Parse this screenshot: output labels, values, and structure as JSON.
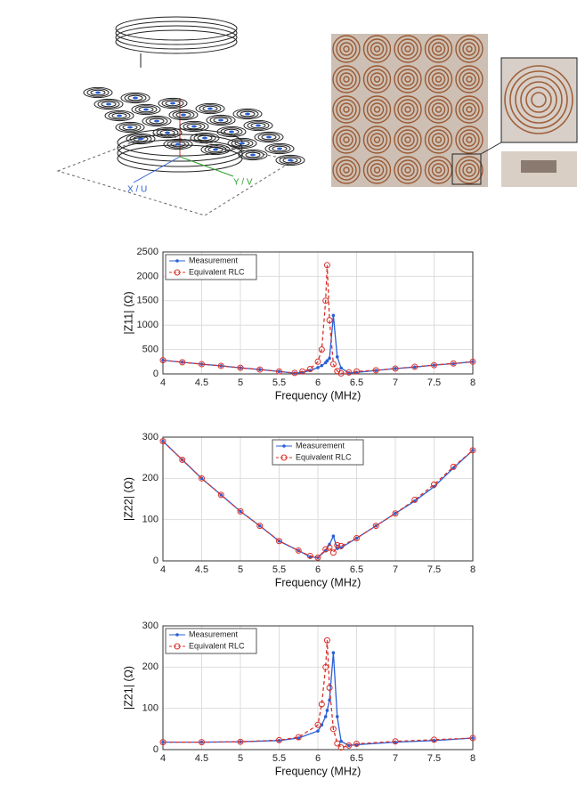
{
  "figure": {
    "diagram_labels": [
      "X / U",
      "Y / V"
    ]
  },
  "chart_data": [
    {
      "type": "line",
      "xlabel": "Frequency (MHz)",
      "ylabel": "|Z11| (Ω)",
      "xlim": [
        4,
        8
      ],
      "xticks": [
        4,
        4.5,
        5,
        5.5,
        6,
        6.5,
        7,
        7.5,
        8
      ],
      "ylim": [
        0,
        2500
      ],
      "yticks": [
        0,
        500,
        1000,
        1500,
        2000,
        2500
      ],
      "grid": true,
      "legend": "upper left",
      "x": [
        4,
        4.25,
        4.5,
        4.75,
        5,
        5.25,
        5.5,
        5.7,
        5.8,
        5.9,
        6,
        6.05,
        6.1,
        6.12,
        6.15,
        6.2,
        6.25,
        6.3,
        6.4,
        6.5,
        6.75,
        7,
        7.25,
        7.5,
        7.75,
        8
      ],
      "series": [
        {
          "name": "Measurement",
          "color": "#2a5fd6",
          "dash": false,
          "marker": "dot",
          "values": [
            280,
            240,
            200,
            165,
            125,
            90,
            50,
            15,
            30,
            70,
            130,
            170,
            230,
            270,
            320,
            1200,
            350,
            120,
            20,
            30,
            70,
            110,
            140,
            180,
            210,
            250
          ]
        },
        {
          "name": "Equivalent RLC",
          "color": "#d9312b",
          "dash": true,
          "marker": "circle",
          "values": [
            280,
            240,
            200,
            165,
            125,
            90,
            50,
            20,
            50,
            100,
            250,
            500,
            1500,
            2230,
            1100,
            200,
            60,
            10,
            30,
            50,
            75,
            110,
            145,
            180,
            215,
            250
          ]
        }
      ]
    },
    {
      "type": "line",
      "xlabel": "Frequency (MHz)",
      "ylabel": "|Z22| (Ω)",
      "xlim": [
        4,
        8
      ],
      "xticks": [
        4,
        4.5,
        5,
        5.5,
        6,
        6.5,
        7,
        7.5,
        8
      ],
      "ylim": [
        0,
        300
      ],
      "yticks": [
        0,
        100,
        200,
        300
      ],
      "grid": true,
      "legend": "upper center",
      "x": [
        4,
        4.25,
        4.5,
        4.75,
        5,
        5.25,
        5.5,
        5.75,
        5.9,
        6,
        6.1,
        6.15,
        6.2,
        6.25,
        6.3,
        6.5,
        6.75,
        7,
        7.25,
        7.5,
        7.75,
        8
      ],
      "series": [
        {
          "name": "Measurement",
          "color": "#2a5fd6",
          "dash": false,
          "marker": "dot",
          "values": [
            290,
            245,
            200,
            160,
            120,
            85,
            48,
            25,
            10,
            8,
            25,
            40,
            60,
            30,
            32,
            55,
            85,
            115,
            145,
            180,
            225,
            268
          ]
        },
        {
          "name": "Equivalent RLC",
          "color": "#d9312b",
          "dash": true,
          "marker": "circle",
          "values": [
            290,
            245,
            200,
            160,
            120,
            85,
            48,
            25,
            12,
            8,
            28,
            32,
            20,
            38,
            36,
            55,
            85,
            115,
            148,
            185,
            228,
            268
          ]
        }
      ]
    },
    {
      "type": "line",
      "xlabel": "Frequency (MHz)",
      "ylabel": "|Z21| (Ω)",
      "xlim": [
        4,
        8
      ],
      "xticks": [
        4,
        4.5,
        5,
        5.5,
        6,
        6.5,
        7,
        7.5,
        8
      ],
      "ylim": [
        0,
        300
      ],
      "yticks": [
        0,
        100,
        200,
        300
      ],
      "grid": true,
      "legend": "upper left",
      "x": [
        4,
        4.5,
        5,
        5.5,
        5.75,
        6,
        6.05,
        6.1,
        6.12,
        6.15,
        6.2,
        6.25,
        6.3,
        6.4,
        6.5,
        7,
        7.5,
        8
      ],
      "series": [
        {
          "name": "Measurement",
          "color": "#2a5fd6",
          "dash": false,
          "marker": "dot",
          "values": [
            18,
            18,
            19,
            22,
            28,
            45,
            60,
            80,
            95,
            120,
            235,
            80,
            20,
            10,
            12,
            18,
            22,
            28
          ]
        },
        {
          "name": "Equivalent RLC",
          "color": "#d9312b",
          "dash": true,
          "marker": "circle",
          "values": [
            18,
            18,
            19,
            23,
            30,
            60,
            110,
            200,
            265,
            150,
            50,
            15,
            5,
            10,
            14,
            20,
            24,
            28
          ]
        }
      ]
    }
  ]
}
